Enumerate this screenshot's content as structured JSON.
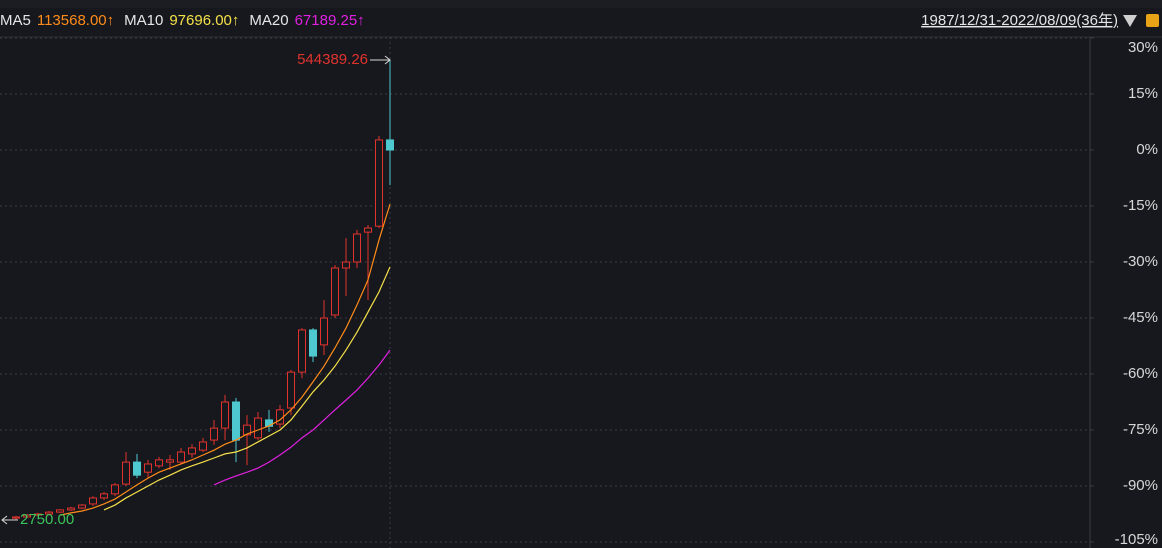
{
  "chart_data": {
    "type": "candlestick",
    "range_label": "1987/12/31-2022/08/09(36年)",
    "up_color": "#e0332d",
    "down_color": "#4ec9cf",
    "candles": {
      "open": [
        -98.6,
        -98.3,
        -97.8,
        -97.5,
        -97.0,
        -96.4,
        -95.9,
        -94.8,
        -93.2,
        -92.1,
        -89.5,
        -83.6,
        -86.3,
        -84.6,
        -83.6,
        -83.6,
        -81.4,
        -80.4,
        -77.7,
        -74.5,
        -67.5,
        -76.3,
        -77.1,
        -72.3,
        -73.4,
        -69.1,
        -59.5,
        -48.2,
        -52.2,
        -44.2,
        -31.6,
        -30.0,
        -22.0,
        -20.4,
        2.7
      ],
      "close": [
        -98.3,
        -97.8,
        -97.5,
        -97.0,
        -96.4,
        -95.9,
        -95.1,
        -93.2,
        -92.1,
        -89.7,
        -83.6,
        -87.1,
        -84.1,
        -83.0,
        -83.0,
        -80.9,
        -79.8,
        -78.2,
        -74.5,
        -67.5,
        -77.7,
        -73.7,
        -71.8,
        -74.0,
        -69.6,
        -59.5,
        -48.2,
        -55.2,
        -45.0,
        -31.6,
        -30.0,
        -22.5,
        -20.9,
        2.7,
        0
      ],
      "high": [
        -98.0,
        -97.5,
        -97.2,
        -96.7,
        -96.2,
        -95.6,
        -94.8,
        -92.7,
        -91.6,
        -89.2,
        -80.9,
        -81.4,
        -83.0,
        -82.2,
        -81.7,
        -79.8,
        -78.8,
        -77.1,
        -72.3,
        -65.6,
        -66.4,
        -71.0,
        -70.2,
        -69.6,
        -68.3,
        -58.9,
        -47.7,
        -47.7,
        -40.2,
        -30.8,
        -23.6,
        -21.4,
        -20.1,
        3.8,
        24.1
      ],
      "low": [
        -99.1,
        -98.6,
        -98.0,
        -97.8,
        -97.2,
        -96.7,
        -96.2,
        -95.4,
        -93.8,
        -92.7,
        -90.0,
        -87.9,
        -87.9,
        -85.2,
        -85.7,
        -84.1,
        -82.5,
        -80.9,
        -79.0,
        -77.7,
        -83.6,
        -84.4,
        -77.7,
        -75.5,
        -74.5,
        -71.0,
        -61.1,
        -56.8,
        -54.9,
        -45.0,
        -39.1,
        -31.6,
        -40.2,
        -20.9,
        -9.4
      ]
    },
    "high_label": "544389.26",
    "low_label": "2750.00",
    "series": [
      {
        "name": "MA5",
        "latest": "113568.00↑",
        "color": "#ff8c1a",
        "values": [
          null,
          null,
          null,
          null,
          -97.8,
          -97.2,
          -96.7,
          -95.9,
          -94.8,
          -93.5,
          -91.6,
          -89.7,
          -87.9,
          -86.3,
          -85.2,
          -84.1,
          -83.0,
          -81.7,
          -80.4,
          -78.8,
          -77.7,
          -76.1,
          -75.0,
          -73.9,
          -72.3,
          -69.6,
          -66.2,
          -62.1,
          -57.9,
          -53.0,
          -47.7,
          -41.5,
          -34.8,
          -24.1,
          -14.5
        ]
      },
      {
        "name": "MA10",
        "latest": "97696.00↑",
        "color": "#f5e04a",
        "values": [
          null,
          null,
          null,
          null,
          null,
          null,
          null,
          null,
          -96.4,
          -95.1,
          -93.2,
          -91.6,
          -90.0,
          -88.4,
          -87.1,
          -85.7,
          -84.6,
          -83.6,
          -82.5,
          -81.4,
          -80.9,
          -79.8,
          -78.2,
          -76.6,
          -75.0,
          -72.3,
          -68.6,
          -64.8,
          -61.6,
          -57.9,
          -53.6,
          -48.8,
          -43.4,
          -38.0,
          -31.3
        ]
      },
      {
        "name": "MA20",
        "latest": "67189.25↑",
        "color": "#e020e0",
        "values": [
          null,
          null,
          null,
          null,
          null,
          null,
          null,
          null,
          null,
          null,
          null,
          null,
          null,
          null,
          null,
          null,
          null,
          null,
          -89.7,
          -88.4,
          -87.3,
          -86.3,
          -85.2,
          -83.6,
          -81.7,
          -79.6,
          -77.1,
          -75.0,
          -72.3,
          -69.6,
          -67.0,
          -64.3,
          -61.1,
          -57.6,
          -53.6
        ]
      }
    ],
    "ylim": [
      -107,
      31
    ],
    "yticks": [
      {
        "value": 30,
        "label": "30%"
      },
      {
        "value": 15,
        "label": "15%"
      },
      {
        "value": 0,
        "label": "0%"
      },
      {
        "value": -15,
        "label": "-15%"
      },
      {
        "value": -30,
        "label": "-30%"
      },
      {
        "value": -45,
        "label": "-45%"
      },
      {
        "value": -60,
        "label": "-60%"
      },
      {
        "value": -75,
        "label": "-75%"
      },
      {
        "value": -90,
        "label": "-90%"
      },
      {
        "value": -105,
        "label": "-105%"
      }
    ],
    "grid": true
  }
}
